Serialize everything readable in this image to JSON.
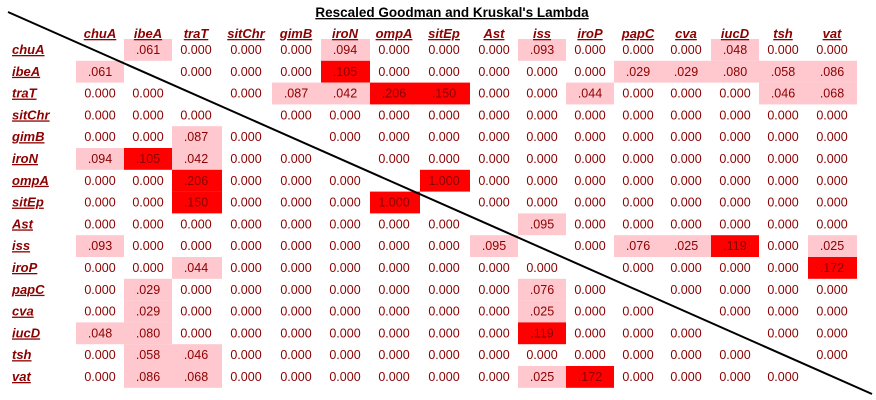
{
  "chart_data": {
    "type": "heatmap",
    "title": "Rescaled  Goodman and Kruskal's Lambda",
    "columns": [
      "chuA",
      "ibeA",
      "traT",
      "sitChr",
      "gimB",
      "iroN",
      "ompA",
      "sitEp",
      "Ast",
      "iss",
      "iroP",
      "papC",
      "cva",
      "iucD",
      "tsh",
      "vat"
    ],
    "rows": [
      "chuA",
      "ibeA",
      "traT",
      "sitChr",
      "gimB",
      "iroN",
      "ompA",
      "sitEp",
      "Ast",
      "iss",
      "iroP",
      "papC",
      "cva",
      "iucD",
      "tsh",
      "vat"
    ],
    "cells": [
      [
        "",
        ".061",
        "0.000",
        "0.000",
        "0.000",
        ".094",
        "0.000",
        "0.000",
        "0.000",
        ".093",
        "0.000",
        "0.000",
        "0.000",
        ".048",
        "0.000",
        "0.000"
      ],
      [
        ".061",
        "",
        "0.000",
        "0.000",
        "0.000",
        ".105",
        "0.000",
        "0.000",
        "0.000",
        "0.000",
        "0.000",
        ".029",
        ".029",
        ".080",
        ".058",
        ".086"
      ],
      [
        "0.000",
        "0.000",
        "",
        "0.000",
        ".087",
        ".042",
        ".206",
        ".150",
        "0.000",
        "0.000",
        ".044",
        "0.000",
        "0.000",
        "0.000",
        ".046",
        ".068"
      ],
      [
        "0.000",
        "0.000",
        "0.000",
        "",
        "0.000",
        "0.000",
        "0.000",
        "0.000",
        "0.000",
        "0.000",
        "0.000",
        "0.000",
        "0.000",
        "0.000",
        "0.000",
        "0.000"
      ],
      [
        "0.000",
        "0.000",
        ".087",
        "0.000",
        "",
        "0.000",
        "0.000",
        "0.000",
        "0.000",
        "0.000",
        "0.000",
        "0.000",
        "0.000",
        "0.000",
        "0.000",
        "0.000"
      ],
      [
        ".094",
        ".105",
        ".042",
        "0.000",
        "0.000",
        "",
        "0.000",
        "0.000",
        "0.000",
        "0.000",
        "0.000",
        "0.000",
        "0.000",
        "0.000",
        "0.000",
        "0.000"
      ],
      [
        "0.000",
        "0.000",
        ".206",
        "0.000",
        "0.000",
        "0.000",
        "",
        "1.000",
        "0.000",
        "0.000",
        "0.000",
        "0.000",
        "0.000",
        "0.000",
        "0.000",
        "0.000"
      ],
      [
        "0.000",
        "0.000",
        ".150",
        "0.000",
        "0.000",
        "0.000",
        "1.000",
        "",
        "0.000",
        "0.000",
        "0.000",
        "0.000",
        "0.000",
        "0.000",
        "0.000",
        "0.000"
      ],
      [
        "0.000",
        "0.000",
        "0.000",
        "0.000",
        "0.000",
        "0.000",
        "0.000",
        "0.000",
        "",
        ".095",
        "0.000",
        "0.000",
        "0.000",
        "0.000",
        "0.000",
        "0.000"
      ],
      [
        ".093",
        "0.000",
        "0.000",
        "0.000",
        "0.000",
        "0.000",
        "0.000",
        "0.000",
        ".095",
        "",
        "0.000",
        ".076",
        ".025",
        ".119",
        "0.000",
        ".025"
      ],
      [
        "0.000",
        "0.000",
        ".044",
        "0.000",
        "0.000",
        "0.000",
        "0.000",
        "0.000",
        "0.000",
        "0.000",
        "",
        "0.000",
        "0.000",
        "0.000",
        "0.000",
        ".172"
      ],
      [
        "0.000",
        ".029",
        "0.000",
        "0.000",
        "0.000",
        "0.000",
        "0.000",
        "0.000",
        "0.000",
        ".076",
        "0.000",
        "",
        "0.000",
        "0.000",
        "0.000",
        "0.000"
      ],
      [
        "0.000",
        ".029",
        "0.000",
        "0.000",
        "0.000",
        "0.000",
        "0.000",
        "0.000",
        "0.000",
        ".025",
        "0.000",
        "0.000",
        "",
        "0.000",
        "0.000",
        "0.000"
      ],
      [
        ".048",
        ".080",
        "0.000",
        "0.000",
        "0.000",
        "0.000",
        "0.000",
        "0.000",
        "0.000",
        ".119",
        "0.000",
        "0.000",
        "0.000",
        "",
        "0.000",
        "0.000"
      ],
      [
        "0.000",
        ".058",
        ".046",
        "0.000",
        "0.000",
        "0.000",
        "0.000",
        "0.000",
        "0.000",
        "0.000",
        "0.000",
        "0.000",
        "0.000",
        "0.000",
        "",
        "0.000"
      ],
      [
        "0.000",
        ".086",
        ".068",
        "0.000",
        "0.000",
        "0.000",
        "0.000",
        "0.000",
        "0.000",
        ".025",
        ".172",
        "0.000",
        "0.000",
        "0.000",
        "0.000",
        ""
      ]
    ],
    "color_scale": {
      "zero": "#ffffff",
      "low": "#ffc7ce",
      "high": "#ff0000",
      "high_threshold": 0.1
    },
    "text_color": "#8b0000",
    "diagonal_line": true,
    "grid": false,
    "legend": "none"
  }
}
